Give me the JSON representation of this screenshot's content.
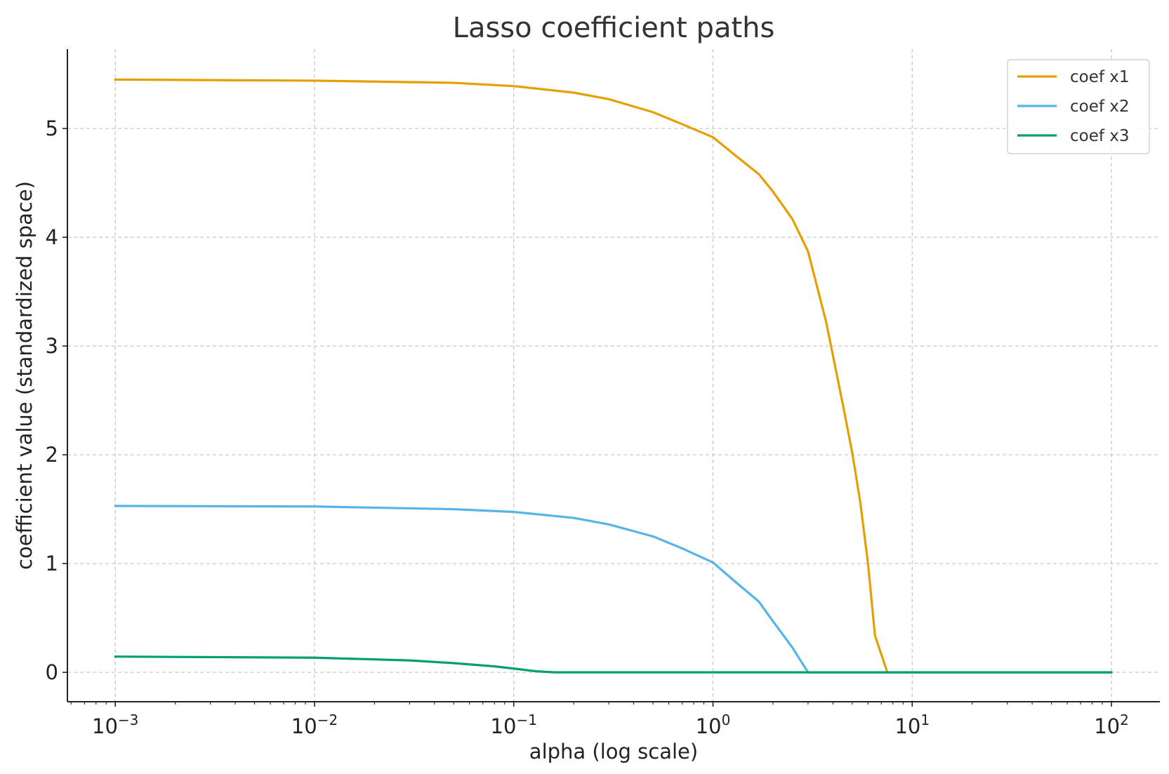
{
  "chart_data": {
    "type": "line",
    "title": "Lasso coefficient paths",
    "xlabel": "alpha (log scale)",
    "ylabel": "coefficient value (standardized space)",
    "xscale": "log",
    "xlim": [
      0.000575,
      175
    ],
    "ylim": [
      -0.27,
      5.73
    ],
    "grid": true,
    "legend_position": "top-right",
    "x_ticks": [
      {
        "base": "10",
        "exp": "−3",
        "value": 0.001
      },
      {
        "base": "10",
        "exp": "−2",
        "value": 0.01
      },
      {
        "base": "10",
        "exp": "−1",
        "value": 0.1
      },
      {
        "base": "10",
        "exp": "0",
        "value": 1
      },
      {
        "base": "10",
        "exp": "1",
        "value": 10
      },
      {
        "base": "10",
        "exp": "2",
        "value": 100
      }
    ],
    "y_ticks": [
      {
        "label": "0",
        "value": 0
      },
      {
        "label": "1",
        "value": 1
      },
      {
        "label": "2",
        "value": 2
      },
      {
        "label": "3",
        "value": 3
      },
      {
        "label": "4",
        "value": 4
      },
      {
        "label": "5",
        "value": 5
      }
    ],
    "series": [
      {
        "name": "coef x1",
        "color": "#E69F00",
        "points": [
          [
            0.001,
            5.45
          ],
          [
            0.01,
            5.44
          ],
          [
            0.05,
            5.42
          ],
          [
            0.1,
            5.39
          ],
          [
            0.2,
            5.33
          ],
          [
            0.3,
            5.27
          ],
          [
            0.5,
            5.15
          ],
          [
            0.7,
            5.04
          ],
          [
            1.0,
            4.92
          ],
          [
            1.3,
            4.75
          ],
          [
            1.7,
            4.58
          ],
          [
            2.0,
            4.42
          ],
          [
            2.5,
            4.17
          ],
          [
            3.0,
            3.87
          ],
          [
            3.7,
            3.22
          ],
          [
            4.5,
            2.45
          ],
          [
            5.0,
            2.02
          ],
          [
            5.5,
            1.55
          ],
          [
            6.0,
            1.0
          ],
          [
            6.5,
            0.34
          ],
          [
            7.5,
            0.0
          ],
          [
            10,
            0.0
          ],
          [
            100,
            0.0
          ]
        ]
      },
      {
        "name": "coef x2",
        "color": "#56B4E9",
        "points": [
          [
            0.001,
            1.53
          ],
          [
            0.01,
            1.525
          ],
          [
            0.05,
            1.5
          ],
          [
            0.1,
            1.475
          ],
          [
            0.2,
            1.42
          ],
          [
            0.3,
            1.36
          ],
          [
            0.5,
            1.25
          ],
          [
            0.7,
            1.14
          ],
          [
            1.0,
            1.01
          ],
          [
            1.3,
            0.83
          ],
          [
            1.7,
            0.65
          ],
          [
            2.0,
            0.47
          ],
          [
            2.5,
            0.23
          ],
          [
            3.0,
            0.0
          ],
          [
            10,
            0.0
          ],
          [
            100,
            0.0
          ]
        ]
      },
      {
        "name": "coef x3",
        "color": "#009E73",
        "points": [
          [
            0.001,
            0.145
          ],
          [
            0.01,
            0.135
          ],
          [
            0.03,
            0.11
          ],
          [
            0.05,
            0.085
          ],
          [
            0.08,
            0.055
          ],
          [
            0.1,
            0.035
          ],
          [
            0.13,
            0.01
          ],
          [
            0.16,
            0.0
          ],
          [
            1.0,
            0.0
          ],
          [
            10,
            0.0
          ],
          [
            100,
            0.0
          ]
        ]
      }
    ]
  }
}
